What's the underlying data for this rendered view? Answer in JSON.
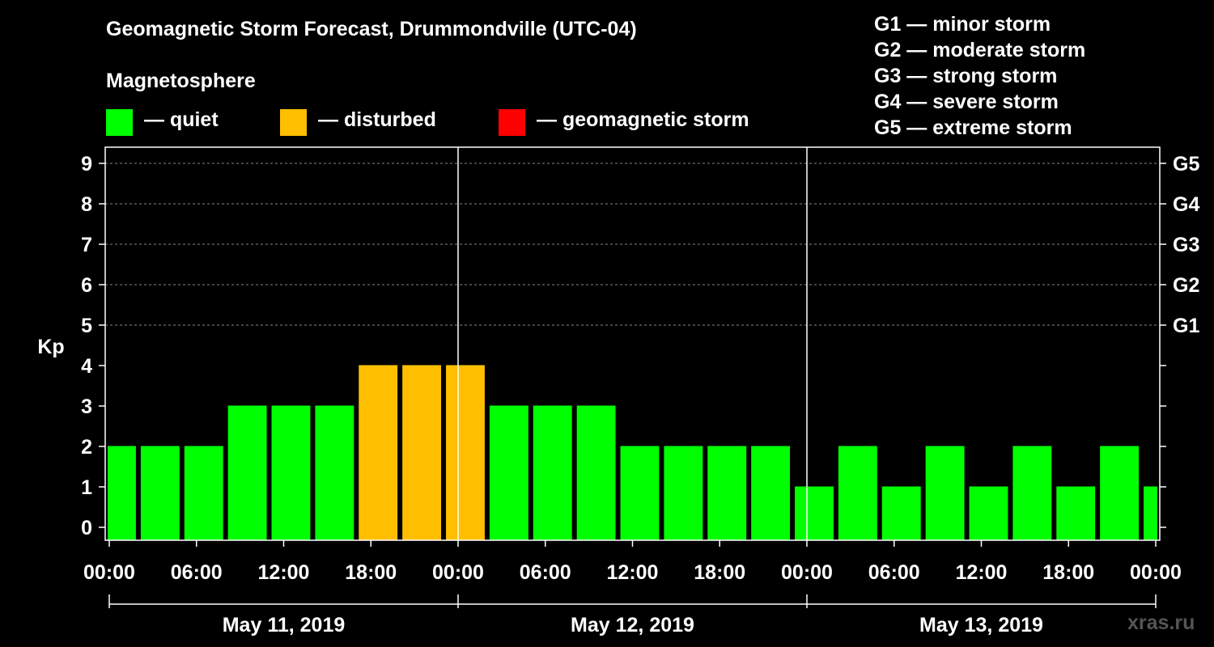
{
  "title": "Geomagnetic Storm Forecast, Drummondville (UTC-04)",
  "section_label": "Magnetosphere",
  "legend": [
    {
      "label": "— quiet",
      "color": "#00ff00"
    },
    {
      "label": "— disturbed",
      "color": "#ffbf00"
    },
    {
      "label": "— geomagnetic storm",
      "color": "#ff0000"
    }
  ],
  "g_scale": [
    "G1 — minor storm",
    "G2 — moderate storm",
    "G3 — strong storm",
    "G4 — severe storm",
    "G5 — extreme storm"
  ],
  "watermark": "xras.ru",
  "chart_data": {
    "type": "bar",
    "title": "Geomagnetic Storm Forecast, Drummondville (UTC-04)",
    "ylabel": "Kp",
    "ylim": [
      0,
      9
    ],
    "y_ticks": [
      "0",
      "1",
      "2",
      "3",
      "4",
      "5",
      "6",
      "7",
      "8",
      "9"
    ],
    "y2_ticks": [
      {
        "value": 5,
        "label": "G1"
      },
      {
        "value": 6,
        "label": "G2"
      },
      {
        "value": 7,
        "label": "G3"
      },
      {
        "value": 8,
        "label": "G4"
      },
      {
        "value": 9,
        "label": "G5"
      }
    ],
    "x_hours_range": [
      0,
      72
    ],
    "x_tick_labels": [
      "00:00",
      "06:00",
      "12:00",
      "18:00",
      "00:00",
      "06:00",
      "12:00",
      "18:00",
      "00:00",
      "06:00",
      "12:00",
      "18:00",
      "00:00"
    ],
    "days": [
      "May 11, 2019",
      "May 12, 2019",
      "May 13, 2019"
    ],
    "bar_interval_hours": 3,
    "bars": [
      {
        "start_hour": -1,
        "kp": 2,
        "level": "quiet"
      },
      {
        "start_hour": 2,
        "kp": 2,
        "level": "quiet"
      },
      {
        "start_hour": 5,
        "kp": 2,
        "level": "quiet"
      },
      {
        "start_hour": 8,
        "kp": 3,
        "level": "quiet"
      },
      {
        "start_hour": 11,
        "kp": 3,
        "level": "quiet"
      },
      {
        "start_hour": 14,
        "kp": 3,
        "level": "quiet"
      },
      {
        "start_hour": 17,
        "kp": 4,
        "level": "disturbed"
      },
      {
        "start_hour": 20,
        "kp": 4,
        "level": "disturbed"
      },
      {
        "start_hour": 23,
        "kp": 4,
        "level": "disturbed"
      },
      {
        "start_hour": 26,
        "kp": 3,
        "level": "quiet"
      },
      {
        "start_hour": 29,
        "kp": 3,
        "level": "quiet"
      },
      {
        "start_hour": 32,
        "kp": 3,
        "level": "quiet"
      },
      {
        "start_hour": 35,
        "kp": 2,
        "level": "quiet"
      },
      {
        "start_hour": 38,
        "kp": 2,
        "level": "quiet"
      },
      {
        "start_hour": 41,
        "kp": 2,
        "level": "quiet"
      },
      {
        "start_hour": 44,
        "kp": 2,
        "level": "quiet"
      },
      {
        "start_hour": 47,
        "kp": 1,
        "level": "quiet"
      },
      {
        "start_hour": 50,
        "kp": 2,
        "level": "quiet"
      },
      {
        "start_hour": 53,
        "kp": 1,
        "level": "quiet"
      },
      {
        "start_hour": 56,
        "kp": 2,
        "level": "quiet"
      },
      {
        "start_hour": 59,
        "kp": 1,
        "level": "quiet"
      },
      {
        "start_hour": 62,
        "kp": 2,
        "level": "quiet"
      },
      {
        "start_hour": 65,
        "kp": 1,
        "level": "quiet"
      },
      {
        "start_hour": 68,
        "kp": 2,
        "level": "quiet"
      },
      {
        "start_hour": 71,
        "kp": 1,
        "level": "quiet"
      }
    ],
    "colors": {
      "quiet": "#00ff00",
      "disturbed": "#ffbf00",
      "storm": "#ff0000"
    }
  }
}
